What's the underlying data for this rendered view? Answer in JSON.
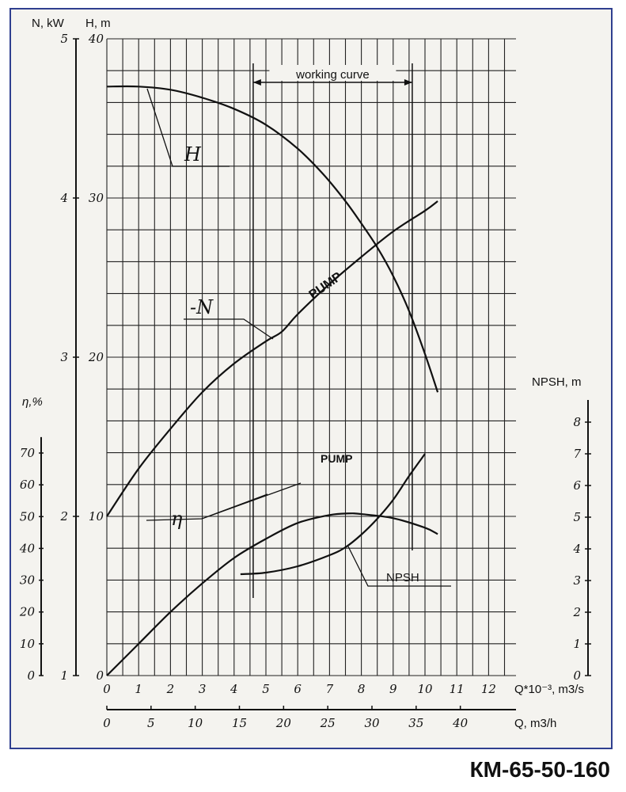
{
  "chart_data": {
    "type": "line",
    "title": "КМ-65-50-160",
    "x": {
      "label": "Q*10⁻³, m3/s",
      "range": [
        0,
        12.5
      ],
      "ticks": [
        0,
        1,
        2,
        3,
        4,
        5,
        6,
        7,
        8,
        9,
        10,
        11,
        12
      ]
    },
    "x2": {
      "label": "Q, m3/h",
      "ticks": [
        0,
        5,
        10,
        15,
        20,
        25,
        30,
        35,
        40
      ]
    },
    "y_axes": {
      "N": {
        "label": "N, kW",
        "range": [
          1,
          5
        ],
        "ticks": [
          1,
          2,
          3,
          4,
          5
        ]
      },
      "H": {
        "label": "H, m",
        "range": [
          0,
          40
        ],
        "ticks": [
          0,
          10,
          20,
          30,
          40
        ]
      },
      "eta": {
        "label": "η,%",
        "range": [
          0,
          70
        ],
        "ticks": [
          0,
          10,
          20,
          30,
          40,
          50,
          60,
          70
        ]
      },
      "NPSH": {
        "label": "NPSH, m",
        "range": [
          0,
          9
        ],
        "ticks": [
          0,
          1,
          2,
          3,
          4,
          5,
          6,
          7,
          8
        ]
      }
    },
    "working_range": {
      "label": "working curve",
      "q_min": 4.6,
      "q_max": 9.6
    },
    "series": [
      {
        "name": "H",
        "axis": "H",
        "x": [
          0,
          1,
          2,
          3,
          4,
          5,
          6,
          6.8,
          7.5,
          8,
          8.5,
          9,
          9.5,
          10,
          10.4
        ],
        "y": [
          37,
          37,
          36.8,
          36.3,
          35.6,
          34.6,
          33.1,
          31.5,
          29.8,
          28.4,
          26.9,
          25.1,
          22.9,
          20.2,
          17.8
        ]
      },
      {
        "name": "N",
        "axis": "N",
        "label": "PUMP",
        "x": [
          0,
          1,
          2,
          3,
          4,
          5,
          5.5,
          6,
          7,
          8,
          9,
          10,
          10.4
        ],
        "y": [
          2,
          2.3,
          2.55,
          2.78,
          2.96,
          3.1,
          3.16,
          3.27,
          3.46,
          3.63,
          3.79,
          3.92,
          3.98
        ]
      },
      {
        "name": "η",
        "axis": "eta",
        "label": "PUMP",
        "x": [
          0,
          1,
          2,
          3,
          4,
          5,
          6,
          7,
          7.6,
          8,
          9,
          10,
          10.4
        ],
        "y": [
          0,
          10,
          20,
          29,
          37,
          43,
          48,
          50.5,
          51,
          50.8,
          49.5,
          46.5,
          44.5
        ]
      },
      {
        "name": "NPSH",
        "axis": "NPSH",
        "x": [
          4.2,
          5,
          6,
          7,
          7.5,
          8,
          8.5,
          9,
          9.5,
          10
        ],
        "y": [
          3.2,
          3.25,
          3.45,
          3.8,
          4.05,
          4.45,
          4.95,
          5.55,
          6.3,
          7
        ]
      }
    ],
    "grid": true
  }
}
